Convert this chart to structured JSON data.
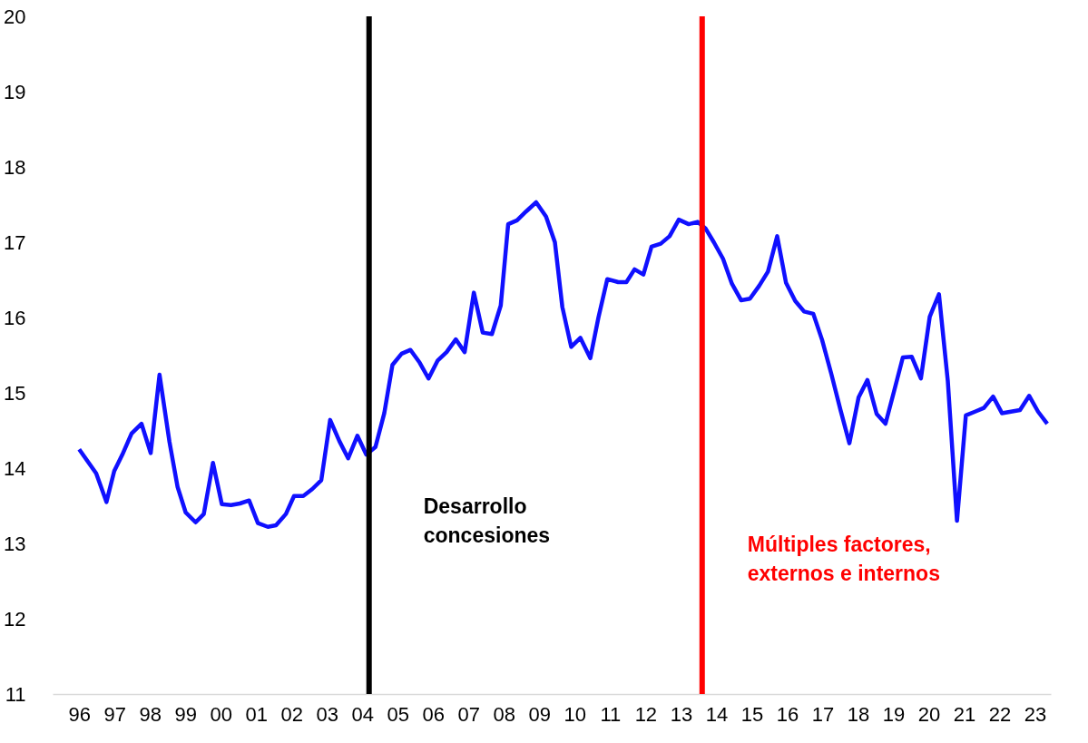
{
  "chart_data": {
    "type": "line",
    "x": [
      1996.0,
      1996.48,
      1996.77,
      1996.99,
      1997.22,
      1997.48,
      1997.76,
      1998.02,
      1998.27,
      1998.55,
      1998.78,
      1999.01,
      1999.29,
      1999.52,
      1999.78,
      2000.03,
      2000.29,
      2000.54,
      2000.8,
      2001.05,
      2001.33,
      2001.56,
      2001.84,
      2002.07,
      2002.33,
      2002.58,
      2002.84,
      2003.09,
      2003.35,
      2003.6,
      2003.86,
      2004.11,
      2004.37,
      2004.62,
      2004.85,
      2005.11,
      2005.36,
      2005.62,
      2005.87,
      2006.13,
      2006.38,
      2006.64,
      2006.89,
      2007.15,
      2007.4,
      2007.66,
      2007.91,
      2008.12,
      2008.37,
      2008.63,
      2008.91,
      2009.19,
      2009.44,
      2009.65,
      2009.9,
      2010.16,
      2010.44,
      2010.67,
      2010.92,
      2011.23,
      2011.46,
      2011.69,
      2011.94,
      2012.17,
      2012.43,
      2012.68,
      2012.94,
      2013.22,
      2013.47,
      2013.7,
      2013.93,
      2014.19,
      2014.44,
      2014.7,
      2014.95,
      2015.21,
      2015.46,
      2015.72,
      2015.97,
      2016.23,
      2016.48,
      2016.74,
      2016.99,
      2017.25,
      2017.51,
      2017.76,
      2018.02,
      2018.27,
      2018.53,
      2018.78,
      2019.01,
      2019.27,
      2019.52,
      2019.78,
      2020.03,
      2020.29,
      2020.54,
      2020.8,
      2021.05,
      2021.31,
      2021.56,
      2021.82,
      2022.07,
      2022.58,
      2022.84,
      2023.09,
      2023.35
    ],
    "series": [
      {
        "color": "#1010ff",
        "values": [
          14.25,
          13.93,
          13.55,
          13.96,
          14.18,
          14.46,
          14.59,
          14.2,
          15.24,
          14.35,
          13.75,
          13.41,
          13.28,
          13.39,
          14.07,
          13.52,
          13.51,
          13.53,
          13.57,
          13.27,
          13.22,
          13.24,
          13.39,
          13.63,
          13.63,
          13.72,
          13.84,
          14.64,
          14.36,
          14.13,
          14.43,
          14.18,
          14.28,
          14.73,
          15.37,
          15.52,
          15.57,
          15.4,
          15.19,
          15.43,
          15.54,
          15.71,
          15.54,
          16.33,
          15.8,
          15.78,
          16.16,
          17.24,
          17.29,
          17.41,
          17.53,
          17.34,
          17.0,
          16.14,
          15.61,
          15.73,
          15.46,
          16.0,
          16.51,
          16.47,
          16.47,
          16.64,
          16.57,
          16.94,
          16.98,
          17.08,
          17.3,
          17.24,
          17.27,
          17.18,
          17.0,
          16.78,
          16.45,
          16.23,
          16.25,
          16.42,
          16.61,
          17.08,
          16.46,
          16.22,
          16.08,
          16.05,
          15.7,
          15.25,
          14.77,
          14.33,
          14.94,
          15.17,
          14.72,
          14.59,
          15.0,
          15.47,
          15.48,
          15.19,
          16.01,
          16.31,
          15.16,
          13.3,
          14.7,
          14.75,
          14.8,
          14.95,
          14.73,
          14.77,
          14.96,
          14.75,
          14.59
        ]
      }
    ],
    "xlim": [
      1995.25,
      2023.45
    ],
    "xticks": [
      {
        "value": 1996,
        "label": "96"
      },
      {
        "value": 1997,
        "label": "97"
      },
      {
        "value": 1998,
        "label": "98"
      },
      {
        "value": 1999,
        "label": "99"
      },
      {
        "value": 2000,
        "label": "00"
      },
      {
        "value": 2001,
        "label": "01"
      },
      {
        "value": 2002,
        "label": "02"
      },
      {
        "value": 2003,
        "label": "03"
      },
      {
        "value": 2004,
        "label": "04"
      },
      {
        "value": 2005,
        "label": "05"
      },
      {
        "value": 2006,
        "label": "06"
      },
      {
        "value": 2007,
        "label": "07"
      },
      {
        "value": 2008,
        "label": "08"
      },
      {
        "value": 2009,
        "label": "09"
      },
      {
        "value": 2010,
        "label": "10"
      },
      {
        "value": 2011,
        "label": "11"
      },
      {
        "value": 2012,
        "label": "12"
      },
      {
        "value": 2013,
        "label": "13"
      },
      {
        "value": 2014,
        "label": "14"
      },
      {
        "value": 2015,
        "label": "15"
      },
      {
        "value": 2016,
        "label": "16"
      },
      {
        "value": 2017,
        "label": "17"
      },
      {
        "value": 2018,
        "label": "18"
      },
      {
        "value": 2019,
        "label": "19"
      },
      {
        "value": 2020,
        "label": "20"
      },
      {
        "value": 2021,
        "label": "21"
      },
      {
        "value": 2022,
        "label": "22"
      },
      {
        "value": 2023,
        "label": "23"
      }
    ],
    "ylim": [
      11,
      20
    ],
    "yticks": [
      11,
      12,
      13,
      14,
      15,
      16,
      17,
      18,
      19,
      20
    ],
    "ref_lines": [
      {
        "axis": "x",
        "value": 2004.19,
        "label": "Desarrollo\nconcesiones",
        "color": "#000000"
      },
      {
        "axis": "x",
        "value": 2013.6,
        "label": "Múltiples factores,\nexternos e internos",
        "color": "#ff0000"
      }
    ],
    "grid": false,
    "marker": "none",
    "line_style": "solid"
  }
}
